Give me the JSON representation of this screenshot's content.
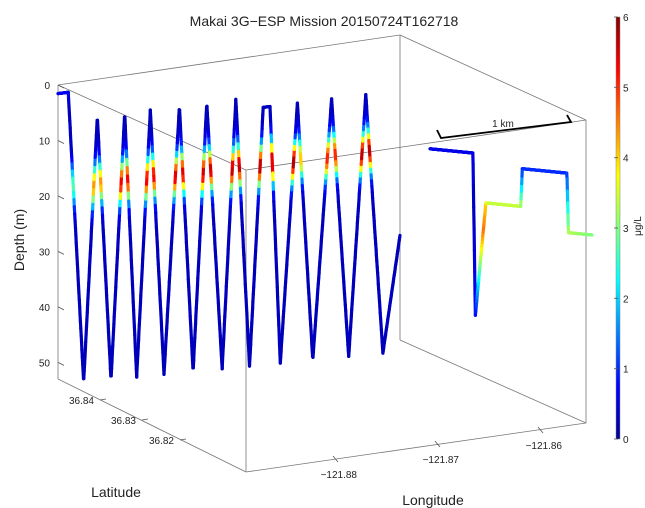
{
  "chart_data": {
    "type": "line",
    "title": "Makai 3G−ESP Mission 20150724T162718",
    "xlabel": "Longitude",
    "ylabel": "Latitude",
    "zlabel": "Depth (m)",
    "colorbar_label": "μg/L",
    "scalebar_label": "1 km",
    "z_ticks": [
      "0",
      "10",
      "20",
      "30",
      "40",
      "50"
    ],
    "z_tick_values": [
      0,
      10,
      20,
      30,
      40,
      50
    ],
    "zlim": [
      0,
      53
    ],
    "lat_ticks": [
      "36.84",
      "36.83",
      "36.82"
    ],
    "lat_tick_values": [
      36.84,
      36.83,
      36.82
    ],
    "lon_ticks": [
      "−121.88",
      "−121.87",
      "−121.86"
    ],
    "lon_tick_values": [
      -121.88,
      -121.87,
      -121.86
    ],
    "colorbar_ticks": [
      "0",
      "1",
      "2",
      "3",
      "4",
      "5",
      "6"
    ],
    "colorbar_tick_values": [
      0,
      1,
      2,
      3,
      4,
      5,
      6
    ],
    "clim": [
      0,
      6
    ],
    "colormap": [
      "#00008f",
      "#0000ff",
      "#0080ff",
      "#00ffff",
      "#80ff80",
      "#ffff00",
      "#ff8000",
      "#ff0000",
      "#800000"
    ],
    "series": [
      {
        "profile": "yo-yo",
        "vertices": [
          {
            "t": 0.0,
            "depth": 1
          },
          {
            "t": 0.03,
            "depth": 1
          },
          {
            "t": 0.075,
            "depth": 53
          },
          {
            "t": 0.115,
            "depth": 6
          },
          {
            "t": 0.155,
            "depth": 53
          },
          {
            "t": 0.195,
            "depth": 6
          },
          {
            "t": 0.23,
            "depth": 53
          },
          {
            "t": 0.27,
            "depth": 6
          },
          {
            "t": 0.31,
            "depth": 53
          },
          {
            "t": 0.355,
            "depth": 6
          },
          {
            "t": 0.395,
            "depth": 53
          },
          {
            "t": 0.435,
            "depth": 6
          },
          {
            "t": 0.48,
            "depth": 53
          },
          {
            "t": 0.52,
            "depth": 6
          },
          {
            "t": 0.56,
            "depth": 53
          },
          {
            "t": 0.6,
            "depth": 8
          },
          {
            "t": 0.62,
            "depth": 8
          },
          {
            "t": 0.65,
            "depth": 53
          },
          {
            "t": 0.7,
            "depth": 8
          },
          {
            "t": 0.745,
            "depth": 53
          },
          {
            "t": 0.8,
            "depth": 8
          },
          {
            "t": 0.85,
            "depth": 53
          },
          {
            "t": 0.9,
            "depth": 8
          },
          {
            "t": 0.95,
            "depth": 53
          },
          {
            "t": 1.0,
            "depth": 33
          }
        ],
        "chlorophyll_peak": {
          "depth": 18,
          "width": 3.6,
          "max": [
            2.8,
            4.5,
            5.5,
            5.5,
            5.6,
            5.7,
            5.8,
            5.9,
            5.9,
            4.2,
            5.2,
            5.8,
            6.0
          ]
        },
        "background_value": 0.3,
        "surface_value": 0.6
      },
      {
        "profile": "level",
        "vertices": [
          {
            "t": 0.0,
            "depth": 12
          },
          {
            "t": 0.265,
            "depth": 12
          },
          {
            "t": 0.28,
            "depth": 42
          },
          {
            "t": 0.345,
            "depth": 21
          },
          {
            "t": 0.56,
            "depth": 21
          },
          {
            "t": 0.57,
            "depth": 14
          },
          {
            "t": 0.845,
            "depth": 14
          },
          {
            "t": 0.855,
            "depth": 25
          },
          {
            "t": 1.0,
            "depth": 25
          }
        ],
        "values": [
          {
            "t": 0.0,
            "value": 0.6
          },
          {
            "t": 0.265,
            "value": 0.6
          },
          {
            "t": 0.27,
            "value": 0.3
          },
          {
            "t": 0.285,
            "value": 1.0
          },
          {
            "t": 0.33,
            "value": 4.6
          },
          {
            "t": 0.36,
            "value": 3.4
          },
          {
            "t": 0.56,
            "value": 3.4
          },
          {
            "t": 0.57,
            "value": 1.0
          },
          {
            "t": 0.845,
            "value": 1.0
          },
          {
            "t": 0.855,
            "value": 3.3
          },
          {
            "t": 1.0,
            "value": 3.0
          }
        ]
      }
    ],
    "grid": false,
    "legend": "colorbar-right"
  }
}
